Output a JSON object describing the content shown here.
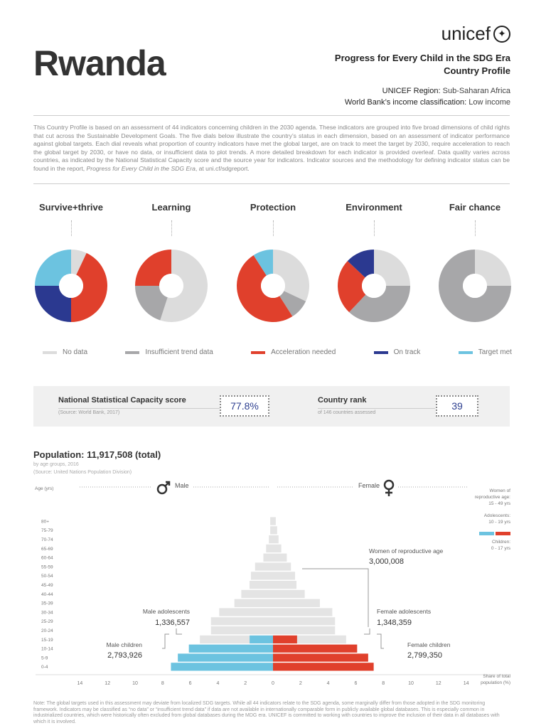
{
  "header": {
    "country": "Rwanda",
    "logo_text": "unicef",
    "subtitle_line1": "Progress for Every Child in the SDG Era",
    "subtitle_line2": "Country Profile",
    "region_label": "UNICEF Region:",
    "region_value": "Sub-Saharan Africa",
    "income_label": "World Bank’s income classification:",
    "income_value": "Low income"
  },
  "intro": {
    "text": "This Country Profile is based on an assessment of 44 indicators concerning children in the 2030 agenda. These indicators are grouped into five broad dimensions of child rights that cut across the Sustainable Development Goals. The five dials below illustrate the country’s status in each dimension, based on an assessment of indicator performance against global targets. Each dial reveals what proportion of country indicators have met the global target, are on track to meet the target by 2030, require acceleration to reach the global target by 2030, or have no data, or insufficient data to plot trends. A more detailed breakdown for each indicator is provided overleaf. Data quality varies across countries, as indicated by the National Statistical Capacity score and the source year for indicators. Indicator sources and the methodology for defining indicator status can be found in the report,",
    "report_title": "Progress for Every Child in the SDG Era",
    "report_suffix": ", at uni.cf/sdgreport."
  },
  "colors": {
    "no_data": "#dcdcdc",
    "insufficient": "#a7a7a9",
    "acceleration": "#e0402c",
    "on_track": "#2b3990",
    "target_met": "#6cc3e0"
  },
  "chart_data": [
    {
      "type": "pie",
      "subtype": "donut",
      "dials": [
        {
          "title": "Survive+thrive",
          "slices": [
            {
              "category": "no_data",
              "value": 0.07
            },
            {
              "category": "acceleration",
              "value": 0.43
            },
            {
              "category": "on_track",
              "value": 0.25
            },
            {
              "category": "target_met",
              "value": 0.25
            }
          ]
        },
        {
          "title": "Learning",
          "slices": [
            {
              "category": "no_data",
              "value": 0.55
            },
            {
              "category": "insufficient",
              "value": 0.2
            },
            {
              "category": "acceleration",
              "value": 0.25
            }
          ]
        },
        {
          "title": "Protection",
          "slices": [
            {
              "category": "no_data",
              "value": 0.32
            },
            {
              "category": "insufficient",
              "value": 0.09
            },
            {
              "category": "acceleration",
              "value": 0.5
            },
            {
              "category": "target_met",
              "value": 0.09
            }
          ]
        },
        {
          "title": "Environment",
          "slices": [
            {
              "category": "no_data",
              "value": 0.25
            },
            {
              "category": "insufficient",
              "value": 0.37
            },
            {
              "category": "acceleration",
              "value": 0.25
            },
            {
              "category": "on_track",
              "value": 0.13
            }
          ]
        },
        {
          "title": "Fair chance",
          "slices": [
            {
              "category": "no_data",
              "value": 0.25
            },
            {
              "category": "insufficient",
              "value": 0.75
            }
          ]
        }
      ],
      "legend": [
        {
          "key": "no_data",
          "label": "No data"
        },
        {
          "key": "insufficient",
          "label": "Insufficient trend data"
        },
        {
          "key": "acceleration",
          "label": "Acceleration needed"
        },
        {
          "key": "on_track",
          "label": "On track"
        },
        {
          "key": "target_met",
          "label": "Target met"
        }
      ]
    },
    {
      "type": "bar",
      "subtype": "population-pyramid",
      "title": "Population: 11,917,508 (total)",
      "age_groups": [
        "0-4",
        "5-9",
        "10-14",
        "15-19",
        "20-24",
        "25-29",
        "30-34",
        "35-39",
        "40-44",
        "45-49",
        "50-54",
        "55-59",
        "60-64",
        "65-69",
        "70-74",
        "75-79",
        "80+"
      ],
      "series": [
        {
          "name": "Male",
          "values": [
            7.4,
            6.9,
            6.1,
            5.3,
            4.5,
            4.5,
            3.9,
            2.8,
            2.3,
            1.7,
            1.6,
            1.3,
            0.7,
            0.5,
            0.3,
            0.2,
            0.2
          ]
        },
        {
          "name": "Female",
          "values": [
            7.3,
            6.9,
            6.1,
            5.3,
            4.5,
            4.5,
            4.3,
            3.4,
            2.3,
            1.7,
            1.6,
            1.3,
            1.0,
            0.6,
            0.4,
            0.3,
            0.2
          ]
        }
      ],
      "highlight": {
        "children_age_groups": [
          "0-4",
          "5-9",
          "10-14"
        ],
        "adolescent_fraction": {
          "male": 0.32,
          "female": 0.33
        }
      },
      "xlim": [
        -14,
        14
      ],
      "xticks": [
        14,
        12,
        10,
        8,
        6,
        4,
        2,
        0,
        2,
        4,
        6,
        8,
        10,
        12,
        14
      ],
      "xlabel": "Share of total population (%)",
      "ylabel": "Age (yrs)"
    }
  ],
  "score": {
    "label": "National Statistical Capacity score",
    "source": "(Source: World Bank, 2017)",
    "value": "77.8%",
    "rank_label": "Country rank",
    "rank_source": "of 146 countries assessed",
    "rank_value": "39"
  },
  "population": {
    "title": "Population: 11,917,508 (total)",
    "by_age": "by age groups, 2016",
    "source": "(Source: United Nations Population Division)",
    "age_axis_label": "Age (yrs)",
    "male_label": "Male",
    "female_label": "Female",
    "share_label_1": "Share of total",
    "share_label_2": "population (%)",
    "annotations": {
      "women_repro_label": "Women of reproductive age",
      "women_repro_value": "3,000,008",
      "male_adol_label": "Male adolescents",
      "male_adol_value": "1,336,557",
      "female_adol_label": "Female adolescents",
      "female_adol_value": "1,348,359",
      "male_child_label": "Male children",
      "male_child_value": "2,793,926",
      "female_child_label": "Female children",
      "female_child_value": "2,799,350"
    },
    "key": {
      "women_1": "Women of",
      "women_2": "reproductive age:",
      "women_3": "15 - 49 yrs",
      "adol_1": "Adolescents:",
      "adol_2": "10 - 19 yrs",
      "child_1": "Children:",
      "child_2": "0 - 17 yrs"
    }
  },
  "note": "Note: The global targets used in this assessment may deviate from localized SDG targets. While all 44 indicators relate to the SDG agenda, some marginally differ from those adopted in the SDG monitoring framework. Indicators may be classified as “no data” or “insufficient trend data” if data are not available in internationally comparable form in publicly available global databases. This is especially common in industrialized countries, which were historically often excluded from global databases during the MDG era. UNICEF is committed to working with countries to improve the inclusion of their data in all databases with which it is involved."
}
